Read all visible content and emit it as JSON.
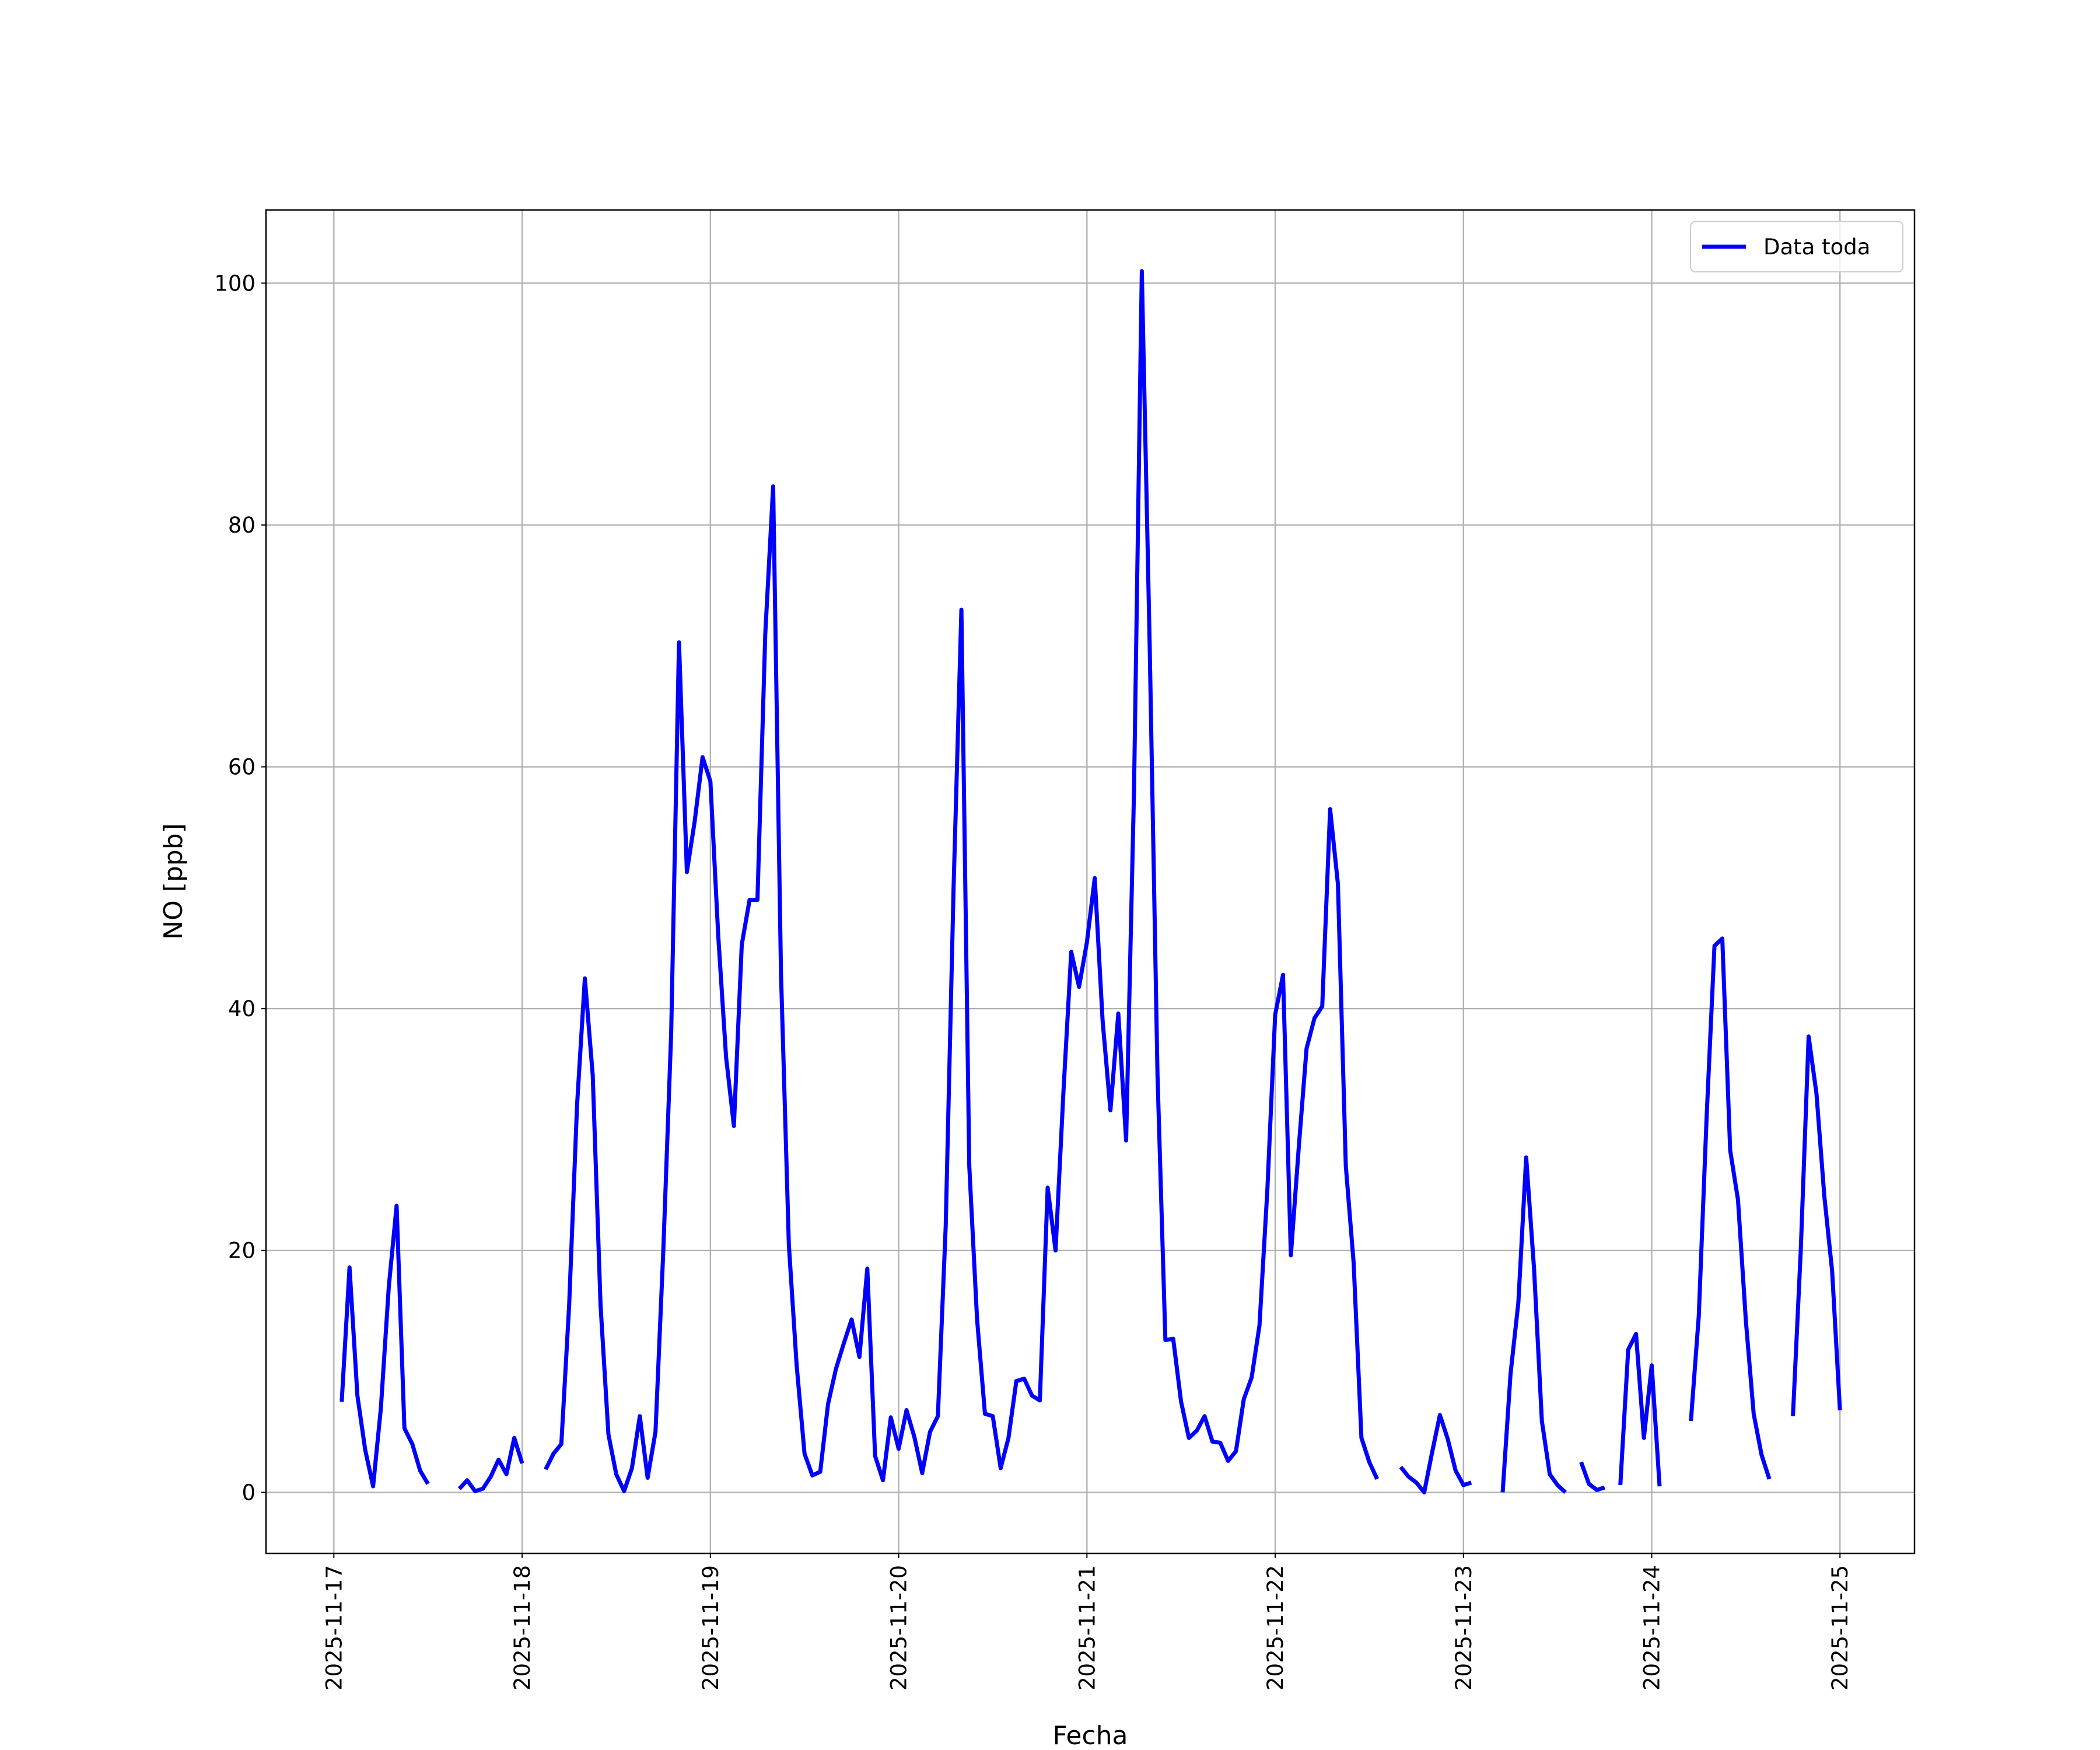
{
  "chart_data": {
    "type": "line",
    "xlabel": "Fecha",
    "ylabel": "NO [ppb]",
    "x": [
      "2025-11-17 01:00",
      "2025-11-17 02:00",
      "2025-11-17 03:00",
      "2025-11-17 04:00",
      "2025-11-17 05:00",
      "2025-11-17 06:00",
      "2025-11-17 07:00",
      "2025-11-17 08:00",
      "2025-11-17 09:00",
      "2025-11-17 10:00",
      "2025-11-17 11:00",
      "2025-11-17 12:00",
      "2025-11-17 13:00",
      "2025-11-17 14:00",
      "2025-11-17 15:00",
      "2025-11-17 16:00",
      "2025-11-17 17:00",
      "2025-11-17 18:00",
      "2025-11-17 19:00",
      "2025-11-17 20:00",
      "2025-11-17 21:00",
      "2025-11-17 22:00",
      "2025-11-17 23:00",
      "2025-11-18 00:00",
      "2025-11-18 01:00",
      "2025-11-18 02:00",
      "2025-11-18 03:00",
      "2025-11-18 04:00",
      "2025-11-18 05:00",
      "2025-11-18 06:00",
      "2025-11-18 07:00",
      "2025-11-18 08:00",
      "2025-11-18 09:00",
      "2025-11-18 10:00",
      "2025-11-18 11:00",
      "2025-11-18 12:00",
      "2025-11-18 13:00",
      "2025-11-18 14:00",
      "2025-11-18 15:00",
      "2025-11-18 16:00",
      "2025-11-18 17:00",
      "2025-11-18 18:00",
      "2025-11-18 19:00",
      "2025-11-18 20:00",
      "2025-11-18 21:00",
      "2025-11-18 22:00",
      "2025-11-18 23:00",
      "2025-11-19 00:00",
      "2025-11-19 01:00",
      "2025-11-19 02:00",
      "2025-11-19 03:00",
      "2025-11-19 04:00",
      "2025-11-19 05:00",
      "2025-11-19 06:00",
      "2025-11-19 07:00",
      "2025-11-19 08:00",
      "2025-11-19 09:00",
      "2025-11-19 10:00",
      "2025-11-19 11:00",
      "2025-11-19 12:00",
      "2025-11-19 13:00",
      "2025-11-19 14:00",
      "2025-11-19 15:00",
      "2025-11-19 16:00",
      "2025-11-19 17:00",
      "2025-11-19 18:00",
      "2025-11-19 19:00",
      "2025-11-19 20:00",
      "2025-11-19 21:00",
      "2025-11-19 22:00",
      "2025-11-19 23:00",
      "2025-11-20 00:00",
      "2025-11-20 01:00",
      "2025-11-20 02:00",
      "2025-11-20 03:00",
      "2025-11-20 04:00",
      "2025-11-20 05:00",
      "2025-11-20 06:00",
      "2025-11-20 07:00",
      "2025-11-20 08:00",
      "2025-11-20 09:00",
      "2025-11-20 10:00",
      "2025-11-20 11:00",
      "2025-11-20 12:00",
      "2025-11-20 13:00",
      "2025-11-20 14:00",
      "2025-11-20 15:00",
      "2025-11-20 16:00",
      "2025-11-20 17:00",
      "2025-11-20 18:00",
      "2025-11-20 19:00",
      "2025-11-20 20:00",
      "2025-11-20 21:00",
      "2025-11-20 22:00",
      "2025-11-20 23:00",
      "2025-11-21 00:00",
      "2025-11-21 01:00",
      "2025-11-21 02:00",
      "2025-11-21 03:00",
      "2025-11-21 04:00",
      "2025-11-21 05:00",
      "2025-11-21 06:00",
      "2025-11-21 07:00",
      "2025-11-21 08:00",
      "2025-11-21 09:00",
      "2025-11-21 10:00",
      "2025-11-21 11:00",
      "2025-11-21 12:00",
      "2025-11-21 13:00",
      "2025-11-21 14:00",
      "2025-11-21 15:00",
      "2025-11-21 16:00",
      "2025-11-21 17:00",
      "2025-11-21 18:00",
      "2025-11-21 19:00",
      "2025-11-21 20:00",
      "2025-11-21 21:00",
      "2025-11-21 22:00",
      "2025-11-21 23:00",
      "2025-11-22 00:00",
      "2025-11-22 01:00",
      "2025-11-22 02:00",
      "2025-11-22 03:00",
      "2025-11-22 04:00",
      "2025-11-22 05:00",
      "2025-11-22 06:00",
      "2025-11-22 07:00",
      "2025-11-22 08:00",
      "2025-11-22 09:00",
      "2025-11-22 10:00",
      "2025-11-22 11:00",
      "2025-11-22 12:00",
      "2025-11-22 13:00",
      "2025-11-22 14:00",
      "2025-11-22 15:00",
      "2025-11-22 16:00",
      "2025-11-22 17:00",
      "2025-11-22 18:00",
      "2025-11-22 19:00",
      "2025-11-22 20:00",
      "2025-11-22 21:00",
      "2025-11-22 22:00",
      "2025-11-22 23:00",
      "2025-11-23 00:00",
      "2025-11-23 01:00",
      "2025-11-23 02:00",
      "2025-11-23 03:00",
      "2025-11-23 04:00",
      "2025-11-23 05:00",
      "2025-11-23 06:00",
      "2025-11-23 07:00",
      "2025-11-23 08:00",
      "2025-11-23 09:00",
      "2025-11-23 10:00",
      "2025-11-23 11:00",
      "2025-11-23 12:00",
      "2025-11-23 13:00",
      "2025-11-23 14:00",
      "2025-11-23 15:00",
      "2025-11-23 16:00",
      "2025-11-23 17:00",
      "2025-11-23 18:00",
      "2025-11-23 19:00",
      "2025-11-23 20:00",
      "2025-11-23 21:00",
      "2025-11-23 22:00",
      "2025-11-23 23:00",
      "2025-11-24 00:00",
      "2025-11-24 01:00",
      "2025-11-24 02:00",
      "2025-11-24 03:00",
      "2025-11-24 04:00",
      "2025-11-24 05:00",
      "2025-11-24 06:00",
      "2025-11-24 07:00",
      "2025-11-24 08:00",
      "2025-11-24 09:00",
      "2025-11-24 10:00",
      "2025-11-24 11:00",
      "2025-11-24 12:00",
      "2025-11-24 13:00",
      "2025-11-24 14:00",
      "2025-11-24 15:00",
      "2025-11-24 16:00",
      "2025-11-24 17:00",
      "2025-11-24 18:00",
      "2025-11-24 19:00",
      "2025-11-24 20:00",
      "2025-11-24 21:00",
      "2025-11-24 22:00",
      "2025-11-24 23:00",
      "2025-11-25 00:00"
    ],
    "series": [
      {
        "name": "Data toda",
        "color": "#0000ff",
        "values": [
          7.5,
          18.6,
          8,
          3.5,
          0.5,
          7,
          17,
          23.7,
          5.3,
          4,
          1.8,
          0.7,
          null,
          null,
          null,
          0.3,
          1.0,
          0.1,
          0.3,
          1.3,
          2.7,
          1.5,
          4.5,
          2.4,
          null,
          null,
          1.9,
          3.2,
          4,
          15.5,
          32,
          42.5,
          34.5,
          15.5,
          4.8,
          1.5,
          0.1,
          2,
          6.3,
          1.2,
          5,
          20,
          38,
          70.3,
          51.3,
          55.5,
          60.8,
          58.8,
          46,
          36,
          30.3,
          45.3,
          49,
          49,
          71,
          83.2,
          43,
          20.5,
          10.5,
          3.2,
          1.4,
          1.7,
          7.3,
          10.2,
          12.3,
          14.3,
          11.2,
          18.5,
          3,
          1,
          6.2,
          3.6,
          6.8,
          4.6,
          1.6,
          5,
          6.3,
          22,
          50,
          73,
          27,
          14.3,
          6.5,
          6.3,
          2,
          4.5,
          9.2,
          9.4,
          8,
          7.6,
          25.2,
          20,
          33,
          44.7,
          41.8,
          45.5,
          50.8,
          39,
          31.6,
          39.6,
          29.1,
          58,
          101,
          70,
          34.5,
          12.6,
          12.7,
          7.5,
          4.5,
          5.1,
          6.3,
          4.2,
          4.1,
          2.6,
          3.4,
          7.7,
          9.5,
          13.8,
          25,
          39.5,
          42.8,
          19.6,
          28.5,
          36.7,
          39.2,
          40.2,
          56.5,
          50.3,
          27,
          19,
          4.5,
          2.5,
          1.1,
          null,
          null,
          2.1,
          1.3,
          0.8,
          0,
          3.3,
          6.4,
          4.4,
          1.8,
          0.6,
          0.8,
          null,
          null,
          null,
          0,
          9.8,
          15.7,
          27.7,
          18.5,
          5.9,
          1.5,
          0.6,
          0,
          null,
          2.5,
          0.7,
          0.2,
          0.4,
          null,
          0.6,
          11.8,
          13.1,
          4.5,
          10.5,
          0.5,
          null,
          null,
          null,
          5.9,
          14.6,
          31,
          45.2,
          45.8,
          28.3,
          24.2,
          14.2,
          6.5,
          3.1,
          1.1,
          null,
          null,
          6.3,
          20,
          37.7,
          33,
          24.5,
          18.3,
          6.8
        ]
      }
    ],
    "xlim": [
      "2025-11-16 15:21",
      "2025-11-25 09:30"
    ],
    "xticks": [
      "2025-11-17",
      "2025-11-18",
      "2025-11-19",
      "2025-11-20",
      "2025-11-21",
      "2025-11-22",
      "2025-11-23",
      "2025-11-24",
      "2025-11-25"
    ],
    "ylim": [
      -5.05,
      106.05
    ],
    "yticks": [
      0,
      20,
      40,
      60,
      80,
      100
    ],
    "grid": true,
    "legend": "upper right"
  }
}
